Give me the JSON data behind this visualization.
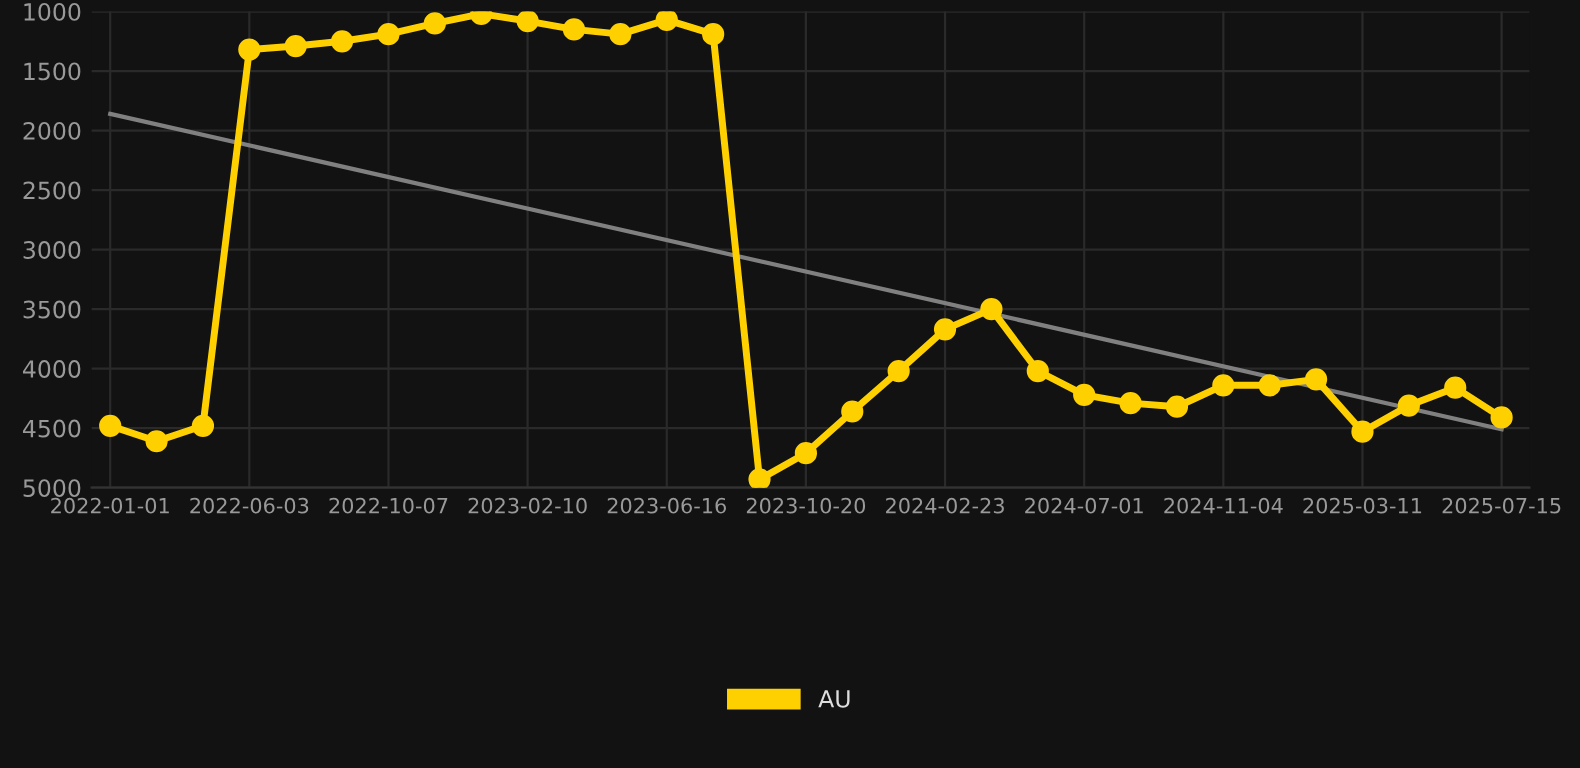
{
  "chart_data": {
    "type": "line",
    "categories": [
      "2022-01-01",
      null,
      null,
      "2022-06-03",
      null,
      null,
      "2022-10-07",
      null,
      null,
      "2023-02-10",
      null,
      null,
      "2023-06-16",
      null,
      null,
      "2023-10-20",
      null,
      null,
      "2024-02-23",
      null,
      null,
      "2024-07-01",
      null,
      null,
      "2024-11-04",
      null,
      null,
      "2025-03-11",
      null,
      null,
      "2025-07-15"
    ],
    "series": [
      {
        "name": "AU",
        "color": "#ffd000",
        "marker": "circle",
        "values": [
          4480,
          4610,
          4480,
          1320,
          1290,
          1250,
          1190,
          1100,
          1020,
          1080,
          1150,
          1190,
          1070,
          1190,
          4930,
          4710,
          4360,
          4020,
          3670,
          3500,
          4020,
          4220,
          4290,
          4320,
          4140,
          4140,
          4090,
          4530,
          4310,
          4160,
          4410
        ]
      },
      {
        "color": "#808080",
        "marker": "none",
        "values": [
          1860,
          null,
          null,
          null,
          null,
          null,
          null,
          null,
          null,
          null,
          null,
          null,
          null,
          null,
          null,
          null,
          null,
          null,
          null,
          null,
          null,
          null,
          null,
          null,
          null,
          null,
          null,
          null,
          null,
          null,
          4510
        ]
      }
    ],
    "ylim": [
      5000,
      1000
    ],
    "yticks": [
      1000,
      1500,
      2000,
      2500,
      3000,
      3500,
      4000,
      4500,
      5000
    ],
    "grid": true,
    "legend": "bottom"
  }
}
